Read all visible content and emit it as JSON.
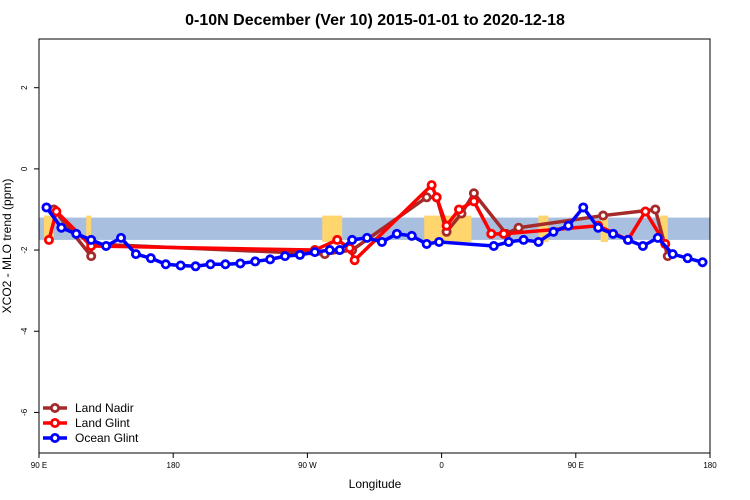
{
  "chart_data": {
    "type": "line",
    "title": "0-10N December (Ver 10)   2015-01-01 to 2020-12-18",
    "xlabel": "Longitude",
    "ylabel": "XCO2 - MLO trend (ppm)",
    "xlim": [
      -90,
      180
    ],
    "ylim": [
      -7,
      3.2
    ],
    "x_ticks": [
      {
        "value": -90,
        "label": "90 E"
      },
      {
        "value": -36,
        "label": "180"
      },
      {
        "value": 18,
        "label": "90 W"
      },
      {
        "value": 72,
        "label": "0"
      },
      {
        "value": 126,
        "label": "90 E"
      },
      {
        "value": 180,
        "label": "180"
      }
    ],
    "y_ticks": [
      {
        "value": 2,
        "label": "2"
      },
      {
        "value": 0,
        "label": "0"
      },
      {
        "value": -2,
        "label": "-2"
      },
      {
        "value": -4,
        "label": "-4"
      },
      {
        "value": -6,
        "label": "-6"
      }
    ],
    "background_band": {
      "ymin": -1.75,
      "ymax": -1.2,
      "ocean_color": "#a9bfdf",
      "land_color": "#ffd56e"
    },
    "land_segments": [
      [
        -88,
        -84
      ],
      [
        -71,
        -69
      ],
      [
        24,
        32
      ],
      [
        65,
        84
      ],
      [
        111,
        115
      ],
      [
        136,
        139
      ],
      [
        160,
        163
      ]
    ],
    "legend_position": "bottom-left",
    "series": [
      {
        "name": "Land Nadir",
        "color": "#a52a2a",
        "points": [
          [
            -84,
            -1.0
          ],
          [
            -69,
            -2.15
          ],
          [
            -69,
            -1.85
          ],
          [
            25,
            -2.1
          ],
          [
            36,
            -2.0
          ],
          [
            66,
            -0.7
          ],
          [
            70,
            -0.7
          ],
          [
            74,
            -1.55
          ],
          [
            80,
            -1.1
          ],
          [
            85,
            -0.6
          ],
          [
            98,
            -1.6
          ],
          [
            103,
            -1.45
          ],
          [
            137,
            -1.15
          ],
          [
            158,
            -1.0
          ],
          [
            163,
            -2.15
          ]
        ]
      },
      {
        "name": "Land Glint",
        "color": "#ff0000",
        "points": [
          [
            -86,
            -1.75
          ],
          [
            -83,
            -1.05
          ],
          [
            -69,
            -1.9
          ],
          [
            21,
            -2.0
          ],
          [
            30,
            -1.75
          ],
          [
            35,
            -1.95
          ],
          [
            37,
            -2.25
          ],
          [
            68,
            -0.4
          ],
          [
            70,
            -0.7
          ],
          [
            74,
            -1.4
          ],
          [
            79,
            -1.0
          ],
          [
            85,
            -0.8
          ],
          [
            92,
            -1.6
          ],
          [
            97,
            -1.6
          ],
          [
            135,
            -1.4
          ],
          [
            147,
            -1.75
          ],
          [
            154,
            -1.05
          ],
          [
            162,
            -1.85
          ]
        ]
      },
      {
        "name": "Ocean Glint",
        "color": "#0000ff",
        "points": [
          [
            -87,
            -0.95
          ],
          [
            -81,
            -1.45
          ],
          [
            -75,
            -1.6
          ],
          [
            -69,
            -1.75
          ],
          [
            -63,
            -1.9
          ],
          [
            -57,
            -1.7
          ],
          [
            -51,
            -2.1
          ],
          [
            -45,
            -2.2
          ],
          [
            -39,
            -2.35
          ],
          [
            -33,
            -2.38
          ],
          [
            -27,
            -2.4
          ],
          [
            -21,
            -2.35
          ],
          [
            -15,
            -2.35
          ],
          [
            -9,
            -2.33
          ],
          [
            -3,
            -2.28
          ],
          [
            3,
            -2.23
          ],
          [
            9,
            -2.15
          ],
          [
            15,
            -2.12
          ],
          [
            21,
            -2.05
          ],
          [
            27,
            -2.0
          ],
          [
            31,
            -2.0
          ],
          [
            36,
            -1.75
          ],
          [
            42,
            -1.7
          ],
          [
            48,
            -1.8
          ],
          [
            54,
            -1.6
          ],
          [
            60,
            -1.65
          ],
          [
            66,
            -1.85
          ],
          [
            71,
            -1.8
          ],
          [
            93,
            -1.9
          ],
          [
            99,
            -1.8
          ],
          [
            105,
            -1.75
          ],
          [
            111,
            -1.8
          ],
          [
            117,
            -1.55
          ],
          [
            123,
            -1.4
          ],
          [
            129,
            -0.95
          ],
          [
            135,
            -1.45
          ],
          [
            141,
            -1.6
          ],
          [
            147,
            -1.75
          ],
          [
            153,
            -1.9
          ],
          [
            159,
            -1.7
          ],
          [
            165,
            -2.1
          ],
          [
            171,
            -2.2
          ],
          [
            177,
            -2.3
          ]
        ]
      }
    ]
  }
}
